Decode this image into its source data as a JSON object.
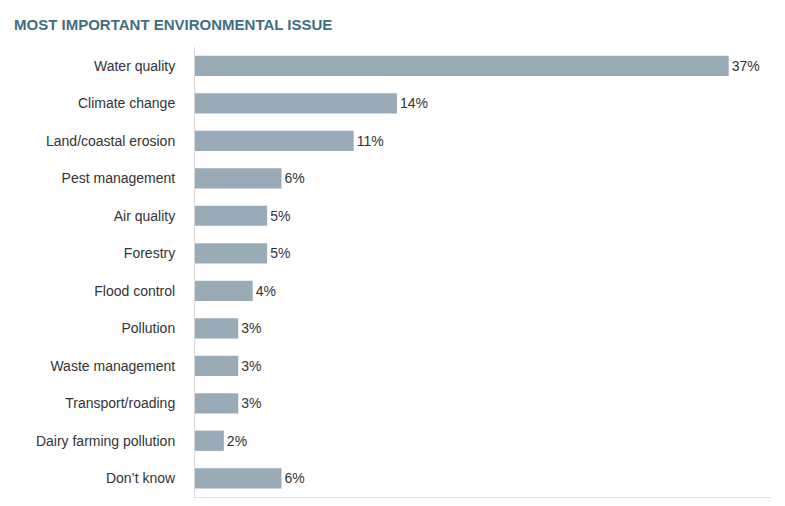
{
  "chart_data": {
    "type": "bar",
    "title": "MOST IMPORTANT ENVIRONMENTAL ISSUE",
    "orientation": "horizontal",
    "categories": [
      "Water quality",
      "Climate change",
      "Land/coastal erosion",
      "Pest management",
      "Air quality",
      "Forestry",
      "Flood control",
      "Pollution",
      "Waste management",
      "Transport/roading",
      "Dairy farming pollution",
      "Don’t know"
    ],
    "values": [
      37,
      14,
      11,
      6,
      5,
      5,
      4,
      3,
      3,
      3,
      2,
      6
    ],
    "value_labels": [
      "37%",
      "14%",
      "11%",
      "6%",
      "5%",
      "5%",
      "4%",
      "3%",
      "3%",
      "3%",
      "2%",
      "6%"
    ],
    "color": "#9aabb8",
    "xlim": [
      0,
      40
    ],
    "xticks": [],
    "grid": false,
    "data_labels": true,
    "tick_labels": "y"
  }
}
